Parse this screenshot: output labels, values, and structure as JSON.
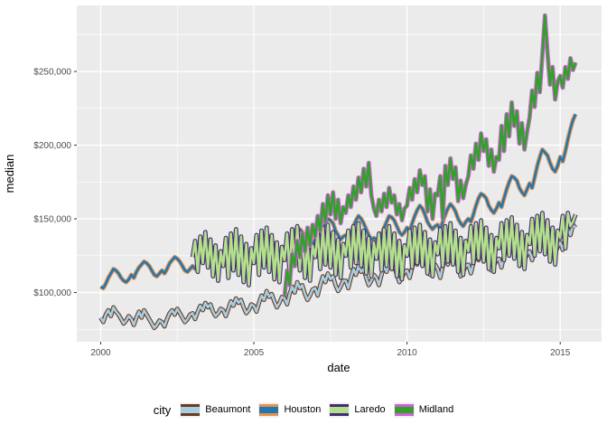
{
  "figure": {
    "bg": "#FFFFFF",
    "panel_bg": "#EBEBEB",
    "grid_color": "#FFFFFF",
    "axis_text_color": "#4D4D4D",
    "axis_title_color": "#000000",
    "tick_mark_color": "#333333",
    "legend_key_bg": "#F0F0F0"
  },
  "legend": {
    "title": "city",
    "entries": [
      {
        "label": "Beaumont",
        "outer_color": "#693C22",
        "inner_color": "#A6CEE3"
      },
      {
        "label": "Houston",
        "outer_color": "#E8914A",
        "inner_color": "#1F78B4"
      },
      {
        "label": "Laredo",
        "outer_color": "#462C75",
        "inner_color": "#B2DF8A"
      },
      {
        "label": "Midland",
        "outer_color": "#CF63D4",
        "inner_color": "#33A02C"
      }
    ]
  },
  "chart_data": {
    "type": "line",
    "xlabel": "date",
    "ylabel": "median",
    "x_unit": "decimal year, monthly step (1/12)",
    "y_unit": "USD (values stored in thousands)",
    "grid": "on",
    "legend_position": "bottom",
    "x_domain": [
      1999.22,
      2016.35
    ],
    "y_domain": [
      66600,
      294800
    ],
    "x_major_ticks": [
      {
        "value": 2000,
        "label": "2000"
      },
      {
        "value": 2005,
        "label": "2005"
      },
      {
        "value": 2010,
        "label": "2010"
      },
      {
        "value": 2015,
        "label": "2015"
      }
    ],
    "x_minor_ticks": [
      2002.5,
      2007.5,
      2012.5
    ],
    "y_major_ticks": [
      {
        "value": 100000,
        "label": "$100,000"
      },
      {
        "value": 150000,
        "label": "$150,000"
      },
      {
        "value": 200000,
        "label": "$200,000"
      },
      {
        "value": 250000,
        "label": "$250,000"
      }
    ],
    "y_minor_ticks": [
      75000,
      125000,
      175000,
      225000,
      275000
    ],
    "series": [
      {
        "name": "Beaumont",
        "start_year": 2000.0,
        "outer_color": "#693C22",
        "inner_color": "#A6CEE3",
        "values_usd_thousands": [
          83,
          80,
          85,
          88,
          84,
          90,
          87,
          85,
          82,
          79,
          81,
          84,
          82,
          78,
          83,
          87,
          83,
          88,
          85,
          82,
          79,
          76,
          78,
          81,
          80,
          77,
          82,
          86,
          88,
          85,
          89,
          86,
          83,
          80,
          82,
          85,
          86,
          82,
          87,
          91,
          88,
          93,
          90,
          92,
          87,
          84,
          86,
          89,
          88,
          84,
          89,
          94,
          91,
          96,
          93,
          95,
          90,
          86,
          88,
          92,
          91,
          87,
          93,
          98,
          95,
          101,
          97,
          99,
          94,
          90,
          93,
          97,
          96,
          92,
          99,
          104,
          100,
          107,
          103,
          105,
          99,
          95,
          98,
          102,
          103,
          98,
          105,
          111,
          107,
          113,
          109,
          111,
          105,
          101,
          104,
          108,
          108,
          103,
          110,
          116,
          112,
          118,
          114,
          116,
          110,
          105,
          108,
          112,
          110,
          105,
          112,
          118,
          114,
          120,
          116,
          118,
          112,
          107,
          110,
          114,
          115,
          110,
          117,
          123,
          119,
          126,
          121,
          124,
          117,
          112,
          115,
          119,
          116,
          110,
          118,
          124,
          119,
          126,
          121,
          124,
          117,
          111,
          114,
          118,
          119,
          113,
          120,
          127,
          122,
          129,
          124,
          127,
          120,
          115,
          118,
          122,
          123,
          117,
          125,
          131,
          126,
          134,
          129,
          131,
          124,
          119,
          122,
          126,
          128,
          122,
          130,
          136,
          131,
          139,
          134,
          136,
          129,
          124,
          127,
          131,
          134,
          129,
          137,
          143,
          139,
          146,
          144
        ]
      },
      {
        "name": "Houston",
        "start_year": 2000.0,
        "outer_color": "#E8914A",
        "inner_color": "#1F78B4",
        "values_usd_thousands": [
          104,
          103,
          106,
          110,
          113,
          116,
          115,
          113,
          110,
          108,
          107,
          109,
          112,
          110,
          114,
          117,
          119,
          121,
          120,
          118,
          115,
          112,
          111,
          113,
          115,
          113,
          116,
          120,
          122,
          124,
          123,
          121,
          118,
          115,
          114,
          116,
          118,
          116,
          119,
          123,
          126,
          128,
          127,
          125,
          121,
          118,
          117,
          119,
          121,
          119,
          123,
          127,
          130,
          133,
          132,
          130,
          126,
          123,
          122,
          124,
          127,
          125,
          129,
          133,
          136,
          139,
          138,
          136,
          132,
          129,
          127,
          129,
          131,
          129,
          133,
          138,
          141,
          144,
          143,
          141,
          137,
          133,
          131,
          133,
          136,
          134,
          138,
          143,
          147,
          150,
          149,
          147,
          142,
          139,
          136,
          138,
          139,
          136,
          140,
          145,
          149,
          152,
          150,
          147,
          143,
          139,
          136,
          137,
          136,
          134,
          139,
          144,
          148,
          152,
          151,
          149,
          145,
          141,
          139,
          141,
          144,
          142,
          147,
          152,
          156,
          159,
          157,
          153,
          148,
          145,
          143,
          145,
          146,
          143,
          148,
          153,
          157,
          160,
          158,
          155,
          150,
          147,
          145,
          148,
          150,
          148,
          153,
          159,
          164,
          167,
          166,
          164,
          159,
          156,
          154,
          157,
          161,
          158,
          164,
          170,
          175,
          179,
          178,
          176,
          171,
          168,
          166,
          170,
          174,
          171,
          178,
          186,
          192,
          197,
          195,
          193,
          188,
          184,
          182,
          186,
          192,
          189,
          196,
          204,
          211,
          217,
          221
        ]
      },
      {
        "name": "Laredo",
        "start_year": 2003.0,
        "outer_color": "#462C75",
        "inner_color": "#B2DF8A",
        "values_usd_thousands": [
          124,
          135,
          114,
          138,
          120,
          141,
          117,
          136,
          111,
          132,
          108,
          128,
          118,
          137,
          110,
          140,
          115,
          143,
          112,
          138,
          107,
          133,
          105,
          130,
          120,
          139,
          112,
          142,
          117,
          144,
          114,
          139,
          109,
          134,
          107,
          131,
          122,
          140,
          114,
          143,
          118,
          145,
          115,
          140,
          110,
          135,
          108,
          132,
          124,
          141,
          116,
          144,
          119,
          146,
          117,
          141,
          112,
          136,
          110,
          133,
          125,
          142,
          117,
          145,
          120,
          147,
          118,
          142,
          113,
          137,
          111,
          134,
          123,
          140,
          115,
          143,
          118,
          145,
          116,
          140,
          111,
          135,
          109,
          132,
          125,
          142,
          117,
          144,
          120,
          146,
          118,
          141,
          113,
          136,
          111,
          134,
          126,
          143,
          118,
          145,
          121,
          147,
          119,
          142,
          114,
          137,
          112,
          135,
          128,
          145,
          120,
          147,
          123,
          149,
          121,
          144,
          116,
          139,
          114,
          137,
          130,
          147,
          122,
          149,
          125,
          151,
          123,
          146,
          118,
          141,
          116,
          139,
          133,
          150,
          125,
          152,
          128,
          154,
          126,
          149,
          121,
          144,
          119,
          142,
          137,
          152,
          130,
          154,
          145,
          148,
          153
        ]
      },
      {
        "name": "Midland",
        "start_year": 2006.0,
        "outer_color": "#CF63D4",
        "inner_color": "#33A02C",
        "values_usd_thousands": [
          97,
          115,
          105,
          126,
          118,
          135,
          124,
          140,
          128,
          144,
          132,
          146,
          138,
          152,
          142,
          160,
          148,
          166,
          153,
          168,
          150,
          163,
          147,
          158,
          154,
          166,
          158,
          172,
          163,
          178,
          168,
          184,
          172,
          188,
          166,
          157,
          152,
          163,
          155,
          167,
          158,
          171,
          161,
          166,
          153,
          160,
          149,
          157,
          159,
          171,
          163,
          177,
          168,
          183,
          173,
          179,
          155,
          170,
          150,
          167,
          166,
          179,
          150,
          186,
          173,
          191,
          177,
          185,
          162,
          176,
          164,
          173,
          179,
          193,
          184,
          201,
          190,
          208,
          196,
          204,
          186,
          197,
          182,
          192,
          190,
          213,
          196,
          221,
          206,
          229,
          213,
          223,
          201,
          215,
          197,
          209,
          219,
          237,
          226,
          249,
          236,
          261,
          288,
          263,
          241,
          253,
          231,
          243,
          247,
          239,
          253,
          245,
          259,
          251,
          256
        ]
      }
    ]
  }
}
